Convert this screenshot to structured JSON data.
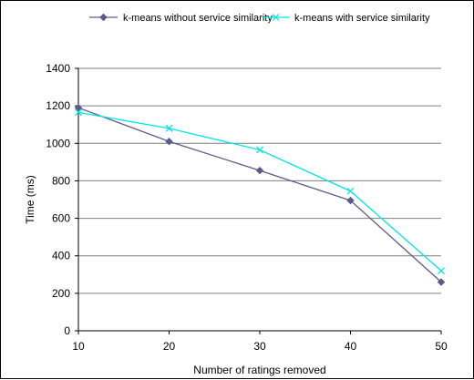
{
  "chart_data": {
    "type": "line",
    "title": "",
    "xlabel": "Number of ratings removed",
    "ylabel": "Time (ms)",
    "x": [
      10,
      20,
      30,
      40,
      50
    ],
    "x_tick_labels": [
      "10",
      "20",
      "30",
      "40",
      "50"
    ],
    "ylim": [
      0,
      1400
    ],
    "y_ticks": [
      0,
      200,
      400,
      600,
      800,
      1000,
      1200,
      1400
    ],
    "y_tick_labels": [
      "0",
      "200",
      "400",
      "600",
      "800",
      "1000",
      "1200",
      "1400"
    ],
    "grid": true,
    "legend_position": "top",
    "series": [
      {
        "name": "k-means without service similarity",
        "values": [
          1190,
          1010,
          855,
          695,
          260
        ],
        "color": "#5a5a8c",
        "marker": "diamond"
      },
      {
        "name": "k-means with service similarity",
        "values": [
          1165,
          1080,
          965,
          745,
          320
        ],
        "color": "#00e5e5",
        "marker": "x"
      }
    ]
  }
}
